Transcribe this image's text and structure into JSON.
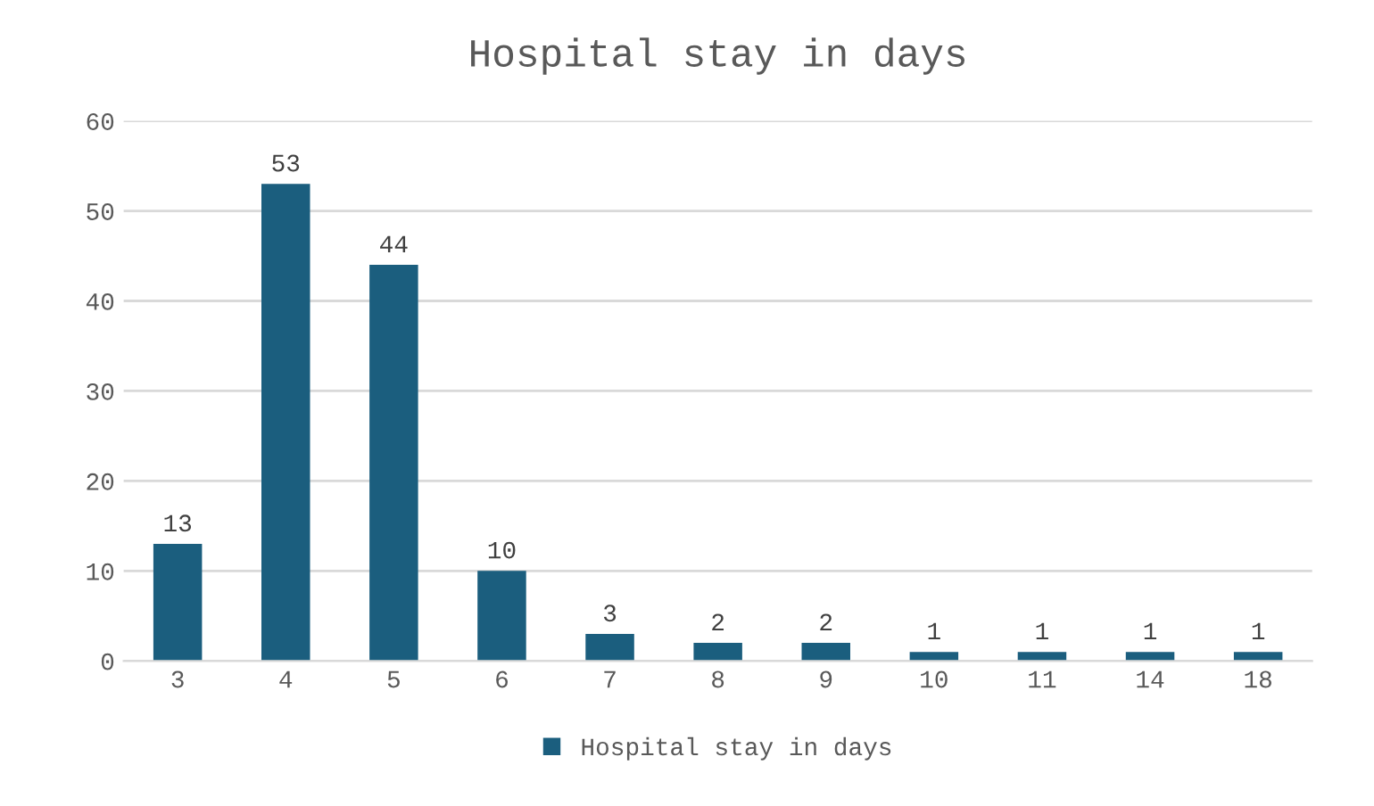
{
  "chart_data": {
    "type": "bar",
    "title": "Hospital stay in days",
    "categories": [
      "3",
      "4",
      "5",
      "6",
      "7",
      "8",
      "9",
      "10",
      "11",
      "14",
      "18"
    ],
    "series": [
      {
        "name": "Hospital stay in days",
        "color": "#1b5e7e",
        "values": [
          13,
          53,
          44,
          10,
          3,
          2,
          2,
          1,
          1,
          1,
          1
        ]
      }
    ],
    "ylim": [
      0,
      60
    ],
    "yticks": [
      0,
      10,
      20,
      30,
      40,
      50,
      60
    ],
    "grid": "y",
    "legend": "bottom",
    "data_labels": true
  }
}
